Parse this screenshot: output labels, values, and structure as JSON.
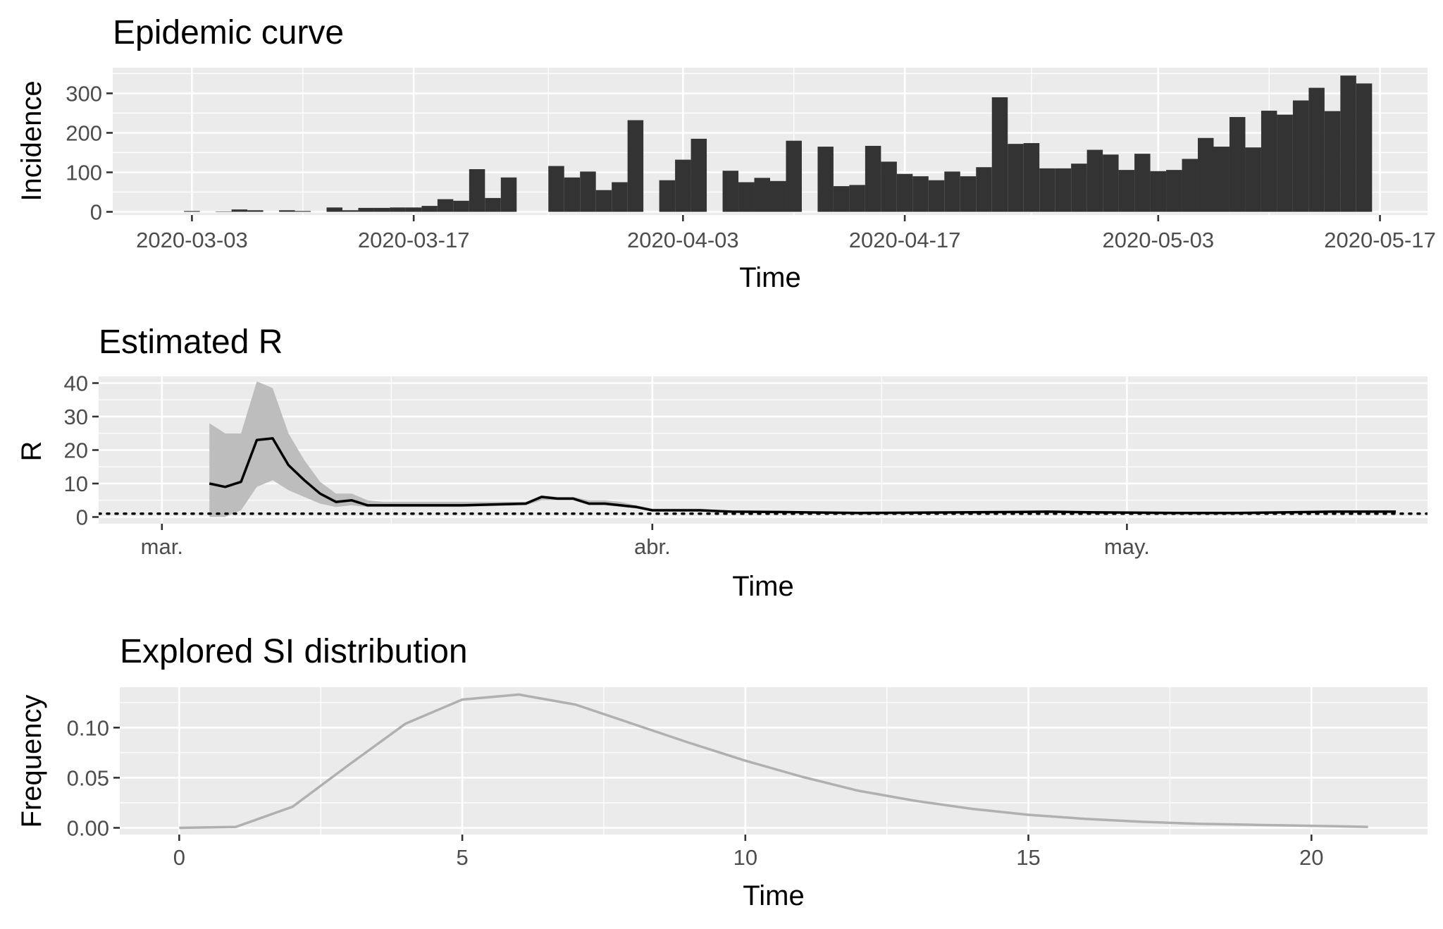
{
  "chart_data": [
    {
      "type": "bar",
      "title": "Epidemic curve",
      "xlabel": "Time",
      "ylabel": "Incidence",
      "x_ticks": [
        "2020-03-03",
        "2020-03-17",
        "2020-04-03",
        "2020-04-17",
        "2020-05-03",
        "2020-05-17"
      ],
      "y_ticks": [
        "0",
        "100",
        "200",
        "300"
      ],
      "xlim": [
        "2020-02-27",
        "2020-05-20"
      ],
      "ylim": [
        -8,
        365
      ],
      "grid": true,
      "bar_color": "#333333",
      "dates": [
        "2020-03-03",
        "2020-03-04",
        "2020-03-05",
        "2020-03-06",
        "2020-03-07",
        "2020-03-08",
        "2020-03-09",
        "2020-03-10",
        "2020-03-11",
        "2020-03-12",
        "2020-03-13",
        "2020-03-14",
        "2020-03-15",
        "2020-03-16",
        "2020-03-17",
        "2020-03-18",
        "2020-03-19",
        "2020-03-20",
        "2020-03-21",
        "2020-03-22",
        "2020-03-23",
        "2020-03-24",
        "2020-03-25",
        "2020-03-26",
        "2020-03-27",
        "2020-03-28",
        "2020-03-29",
        "2020-03-30",
        "2020-03-31",
        "2020-04-01",
        "2020-04-02",
        "2020-04-03",
        "2020-04-04",
        "2020-04-05",
        "2020-04-06",
        "2020-04-07",
        "2020-04-08",
        "2020-04-09",
        "2020-04-10",
        "2020-04-11",
        "2020-04-12",
        "2020-04-13",
        "2020-04-14",
        "2020-04-15",
        "2020-04-16",
        "2020-04-17",
        "2020-04-18",
        "2020-04-19",
        "2020-04-20",
        "2020-04-21",
        "2020-04-22",
        "2020-04-23",
        "2020-04-24",
        "2020-04-25",
        "2020-04-26",
        "2020-04-27",
        "2020-04-28",
        "2020-04-29",
        "2020-04-30",
        "2020-05-01",
        "2020-05-02",
        "2020-05-03",
        "2020-05-04",
        "2020-05-05",
        "2020-05-06",
        "2020-05-07",
        "2020-05-08",
        "2020-05-09",
        "2020-05-10",
        "2020-05-11",
        "2020-05-12",
        "2020-05-13",
        "2020-05-14",
        "2020-05-15",
        "2020-05-16"
      ],
      "values": [
        2,
        0,
        1,
        6,
        4,
        0,
        4,
        2,
        0,
        11,
        4,
        10,
        10,
        11,
        11,
        15,
        32,
        28,
        108,
        35,
        87,
        0,
        0,
        116,
        87,
        102,
        55,
        75,
        232,
        0,
        80,
        132,
        185,
        0,
        104,
        75,
        86,
        78,
        180,
        0,
        165,
        65,
        68,
        167,
        127,
        96,
        90,
        80,
        102,
        90,
        113,
        290,
        172,
        174,
        110,
        110,
        122,
        157,
        145,
        106,
        147,
        103,
        106,
        134,
        187,
        165,
        240,
        163,
        256,
        246,
        282,
        314,
        255,
        345,
        325
      ]
    },
    {
      "type": "line",
      "title": "Estimated R",
      "xlabel": "Time",
      "ylabel": "R",
      "x_ticks": [
        "mar.",
        "abr.",
        "may."
      ],
      "y_ticks": [
        "0",
        "10",
        "20",
        "30",
        "40"
      ],
      "xlim": [
        "2020-02-26",
        "2020-05-20"
      ],
      "ylim": [
        -2,
        42
      ],
      "grid": true,
      "reference_line": 1,
      "line_color": "#000000",
      "band_color": "#bdbdbd",
      "dates": [
        "2020-03-04",
        "2020-03-05",
        "2020-03-06",
        "2020-03-07",
        "2020-03-08",
        "2020-03-09",
        "2020-03-10",
        "2020-03-11",
        "2020-03-12",
        "2020-03-13",
        "2020-03-14",
        "2020-03-15",
        "2020-03-16",
        "2020-03-17",
        "2020-03-18",
        "2020-03-20",
        "2020-03-24",
        "2020-03-25",
        "2020-03-26",
        "2020-03-27",
        "2020-03-28",
        "2020-03-29",
        "2020-03-30",
        "2020-03-31",
        "2020-04-01",
        "2020-04-04",
        "2020-04-06",
        "2020-04-09",
        "2020-04-14",
        "2020-04-24",
        "2020-04-26",
        "2020-04-29",
        "2020-05-04",
        "2020-05-08",
        "2020-05-11",
        "2020-05-14",
        "2020-05-18"
      ],
      "mean": [
        10,
        9,
        10.5,
        23,
        23.5,
        15.5,
        11,
        7,
        4.5,
        5,
        3.5,
        3.5,
        3.5,
        3.5,
        3.5,
        3.5,
        4,
        6,
        5.5,
        5.5,
        4,
        4,
        3.5,
        3,
        2,
        2,
        1.6,
        1.5,
        1.2,
        1.5,
        1.6,
        1.4,
        1.2,
        1.2,
        1.4,
        1.6,
        1.6
      ],
      "lower": [
        0,
        0,
        2,
        9,
        11,
        8,
        6,
        4,
        3,
        3.5,
        3,
        3,
        3,
        3,
        3,
        3,
        3.5,
        5,
        5,
        5,
        3.5,
        3.5,
        3,
        2.5,
        1.8,
        1.8,
        1.4,
        1.3,
        1,
        1.3,
        1.4,
        1.2,
        1,
        1,
        1.2,
        1.4,
        1.4
      ],
      "upper": [
        28,
        25,
        25,
        40.5,
        38.5,
        25,
        17,
        10.5,
        7,
        7,
        5,
        4.5,
        4.5,
        4.5,
        4.5,
        4.5,
        4.5,
        6.5,
        6,
        6,
        5,
        5,
        4.5,
        3.5,
        2.5,
        2.5,
        1.9,
        1.8,
        1.5,
        1.8,
        1.9,
        1.7,
        1.5,
        1.5,
        1.7,
        1.9,
        1.9
      ]
    },
    {
      "type": "line",
      "title": "Explored SI distribution",
      "xlabel": "Time",
      "ylabel": "Frequency",
      "x_ticks": [
        "0",
        "5",
        "10",
        "15",
        "20"
      ],
      "y_ticks": [
        "0.00",
        "0.05",
        "0.10"
      ],
      "xlim": [
        -1.05,
        22.05
      ],
      "ylim": [
        -0.0067,
        0.1403
      ],
      "grid": true,
      "line_color": "#b0b0b0",
      "x": [
        0,
        1,
        2,
        3,
        4,
        5,
        6,
        7,
        8,
        9,
        10,
        11,
        12,
        13,
        14,
        15,
        16,
        17,
        18,
        19,
        20,
        21
      ],
      "y": [
        0,
        0.001,
        0.021,
        0.063,
        0.104,
        0.128,
        0.133,
        0.123,
        0.104,
        0.085,
        0.067,
        0.051,
        0.037,
        0.027,
        0.019,
        0.013,
        0.009,
        0.006,
        0.004,
        0.003,
        0.002,
        0.001
      ]
    }
  ]
}
